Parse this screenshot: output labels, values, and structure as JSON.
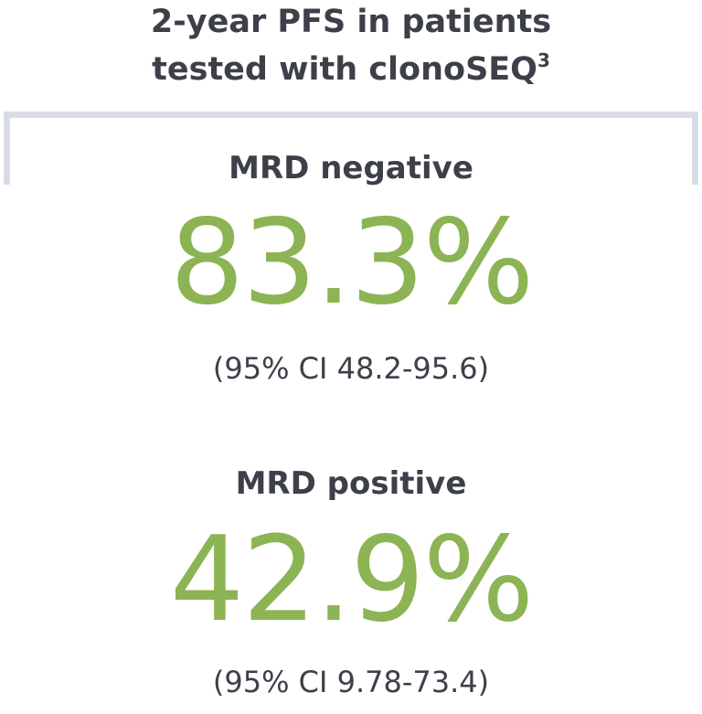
{
  "title": {
    "line1": "2-year PFS in patients",
    "line2": "tested with clonoSEQ",
    "superscript": "3"
  },
  "stats": [
    {
      "label": "MRD negative",
      "value": "83.3%",
      "ci": "(95% CI 48.2-95.6)"
    },
    {
      "label": "MRD positive",
      "value": "42.9%",
      "ci": "(95% CI 9.78-73.4)"
    }
  ]
}
